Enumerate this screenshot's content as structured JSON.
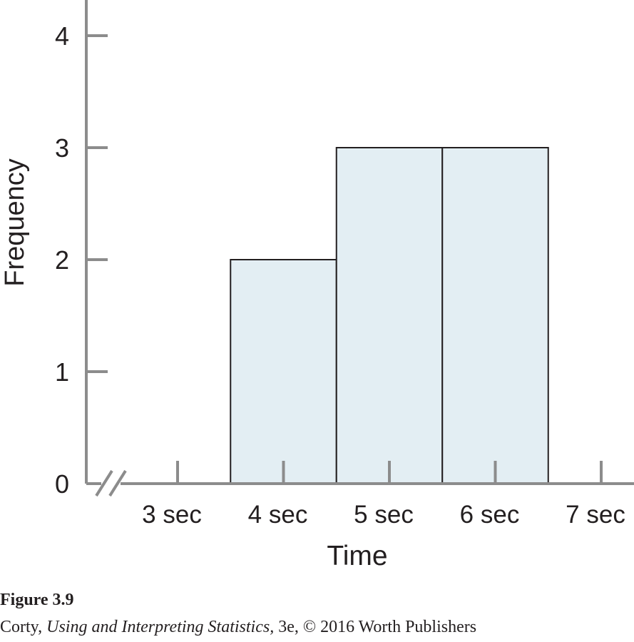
{
  "chart_data": {
    "type": "bar",
    "xlabel": "Time",
    "ylabel": "Frequency",
    "categories": [
      "3 sec",
      "4 sec",
      "5 sec",
      "6 sec",
      "7 sec"
    ],
    "values": [
      0,
      2,
      3,
      3,
      0
    ],
    "yticks": [
      "0",
      "1",
      "2",
      "3",
      "4"
    ],
    "ylim": [
      0,
      4.2
    ],
    "axis_break": true,
    "grid": false
  },
  "colors": {
    "bar_fill": "#e3eef3",
    "bar_stroke": "#231f20",
    "axis": "#8c8c8c",
    "text": "#231f20"
  },
  "caption": {
    "figure_label": "Figure 3.9",
    "credit_author": "Corty, ",
    "credit_title": "Using and Interpreting Statistics,",
    "credit_rest": " 3e, © 2016 Worth Publishers"
  }
}
